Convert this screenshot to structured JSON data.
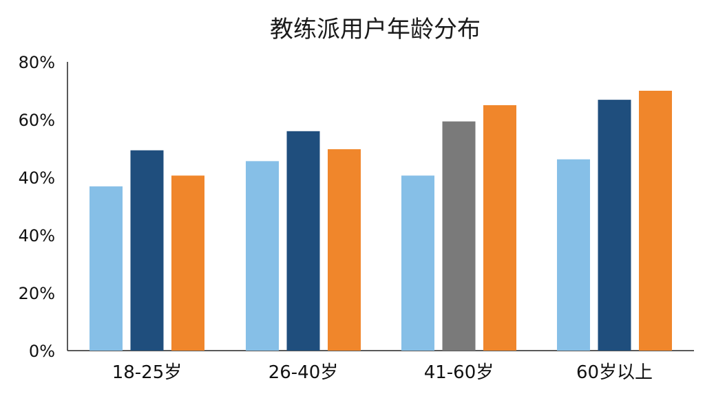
{
  "chart_data": {
    "type": "bar",
    "title": "教练派用户年龄分布",
    "categories": [
      "18-25岁",
      "26-40岁",
      "41-60岁",
      "60岁以上"
    ],
    "y_tick_labels": [
      "0%",
      "20%",
      "40%",
      "40%",
      "60%",
      "80%"
    ],
    "ylim": [
      0,
      80
    ],
    "series": [
      {
        "values": [
          45.5,
          52.5,
          48.5,
          53
        ]
      },
      {
        "values": [
          55.5,
          60.8,
          63.5,
          69.5
        ]
      },
      {
        "values": [
          48.5,
          55.8,
          68,
          72
        ]
      }
    ],
    "bar_colors": [
      [
        "#86bfe7",
        "#86bfe7",
        "#86bfe7",
        "#86bfe7"
      ],
      [
        "#1f4e7d",
        "#1f4e7d",
        "#7a7a7a",
        "#1f4e7d"
      ],
      [
        "#f0862b",
        "#f0862b",
        "#f0862b",
        "#f0862b"
      ]
    ],
    "grid": false,
    "legend": "none"
  }
}
